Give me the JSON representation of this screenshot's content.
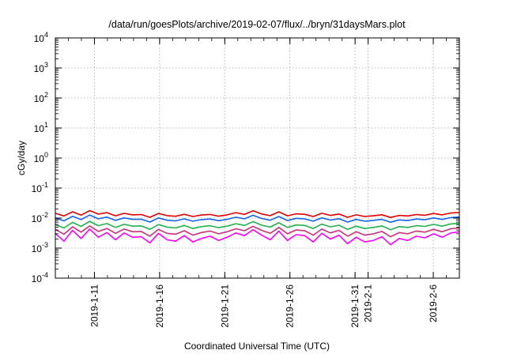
{
  "chart_data": {
    "type": "line",
    "title": "/data/run/goesPlots/archive/2019-02-07/flux/../bryn/31daysMars.plot",
    "xlabel": "Coordinated Universal Time (UTC)",
    "ylabel": "cGy/day",
    "yscale": "log",
    "ylim_exponents": [
      -4,
      4
    ],
    "y_ticks": [
      {
        "base": "10",
        "exp": "-4"
      },
      {
        "base": "10",
        "exp": "-3"
      },
      {
        "base": "10",
        "exp": "-2"
      },
      {
        "base": "10",
        "exp": "-1"
      },
      {
        "base": "10",
        "exp": "0"
      },
      {
        "base": "10",
        "exp": "1"
      },
      {
        "base": "10",
        "exp": "2"
      },
      {
        "base": "10",
        "exp": "3"
      },
      {
        "base": "10",
        "exp": "4"
      }
    ],
    "xlim": [
      "2019-01-08",
      "2019-02-08"
    ],
    "x_ticks": [
      {
        "label": "2019-1-11",
        "date": "2019-01-11"
      },
      {
        "label": "2019-1-16",
        "date": "2019-01-16"
      },
      {
        "label": "2019-1-21",
        "date": "2019-01-21"
      },
      {
        "label": "2019-1-26",
        "date": "2019-01-26"
      },
      {
        "label": "2019-1-31",
        "date": "2019-01-31"
      },
      {
        "label": "2019-2-1",
        "date": "2019-02-01"
      },
      {
        "label": "2019-2-6",
        "date": "2019-02-06"
      }
    ],
    "grid": true,
    "series_style": [
      {
        "color": "#e00000"
      },
      {
        "color": "#1565e8"
      },
      {
        "color": "#22b14c"
      },
      {
        "color": "#c8307a"
      },
      {
        "color": "#ff00ff"
      }
    ],
    "series": [
      {
        "color": "#e00000",
        "approx_level": 0.012,
        "values": [
          0.0145,
          0.0118,
          0.0162,
          0.0125,
          0.0178,
          0.0135,
          0.0152,
          0.0119,
          0.0144,
          0.0128,
          0.0131,
          0.0106,
          0.0143,
          0.0121,
          0.0115,
          0.0134,
          0.0113,
          0.0127,
          0.0132,
          0.0116,
          0.0128,
          0.0152,
          0.0133,
          0.0175,
          0.0137,
          0.0121,
          0.0161,
          0.0119,
          0.0139,
          0.0134,
          0.0113,
          0.0145,
          0.0123,
          0.0136,
          0.0106,
          0.0128,
          0.0113,
          0.0119,
          0.0129,
          0.0105,
          0.0123,
          0.0118,
          0.0131,
          0.0124,
          0.0142,
          0.0128,
          0.0147,
          0.0153
        ]
      },
      {
        "color": "#1565e8",
        "approx_level": 0.0085,
        "values": [
          0.0101,
          0.0081,
          0.0115,
          0.0089,
          0.0127,
          0.0094,
          0.0108,
          0.0084,
          0.0101,
          0.0091,
          0.0092,
          0.0074,
          0.0101,
          0.0085,
          0.0081,
          0.0094,
          0.0079,
          0.0089,
          0.0093,
          0.0082,
          0.0091,
          0.0107,
          0.0094,
          0.0124,
          0.0097,
          0.0085,
          0.0113,
          0.0083,
          0.0098,
          0.0094,
          0.0079,
          0.0102,
          0.0086,
          0.0095,
          0.0074,
          0.009,
          0.0079,
          0.0084,
          0.0091,
          0.0073,
          0.0087,
          0.0083,
          0.0093,
          0.0088,
          0.0101,
          0.009,
          0.0104,
          0.0109
        ]
      },
      {
        "color": "#22b14c",
        "approx_level": 0.0055,
        "values": [
          0.0061,
          0.0047,
          0.0072,
          0.0053,
          0.0078,
          0.0056,
          0.0066,
          0.0049,
          0.0062,
          0.0054,
          0.0055,
          0.0042,
          0.0061,
          0.005,
          0.0047,
          0.0057,
          0.0045,
          0.0052,
          0.0056,
          0.0048,
          0.0054,
          0.0065,
          0.0057,
          0.0076,
          0.0058,
          0.005,
          0.007,
          0.0049,
          0.0059,
          0.0057,
          0.0045,
          0.0063,
          0.0051,
          0.0058,
          0.0042,
          0.0054,
          0.0045,
          0.0049,
          0.0055,
          0.0041,
          0.0052,
          0.0049,
          0.0056,
          0.0053,
          0.0062,
          0.0054,
          0.0064,
          0.0068
        ]
      },
      {
        "color": "#c8307a",
        "approx_level": 0.0035,
        "values": [
          0.0042,
          0.0029,
          0.0051,
          0.0034,
          0.0055,
          0.0036,
          0.0045,
          0.0031,
          0.0043,
          0.0035,
          0.0036,
          0.0025,
          0.0042,
          0.0031,
          0.0029,
          0.0038,
          0.0027,
          0.0033,
          0.0037,
          0.003,
          0.0035,
          0.0044,
          0.0038,
          0.0053,
          0.0039,
          0.0031,
          0.0049,
          0.003,
          0.004,
          0.0038,
          0.0027,
          0.0043,
          0.0032,
          0.0039,
          0.0025,
          0.0035,
          0.0027,
          0.003,
          0.0036,
          0.0024,
          0.0033,
          0.003,
          0.0037,
          0.0034,
          0.0042,
          0.0035,
          0.0044,
          0.0047
        ]
      },
      {
        "color": "#ff00ff",
        "approx_level": 0.0024,
        "values": [
          0.0031,
          0.0017,
          0.0039,
          0.0021,
          0.0043,
          0.0023,
          0.0033,
          0.0019,
          0.0032,
          0.0023,
          0.0024,
          0.0015,
          0.0031,
          0.0019,
          0.0017,
          0.0026,
          0.0016,
          0.0021,
          0.0025,
          0.0018,
          0.0023,
          0.0032,
          0.0026,
          0.0041,
          0.0027,
          0.0019,
          0.0037,
          0.0018,
          0.0028,
          0.0026,
          0.0016,
          0.0031,
          0.002,
          0.0027,
          0.0014,
          0.0023,
          0.0016,
          0.0018,
          0.0024,
          0.0013,
          0.0021,
          0.0018,
          0.0025,
          0.0022,
          0.003,
          0.0023,
          0.0032,
          0.0035
        ]
      }
    ]
  }
}
